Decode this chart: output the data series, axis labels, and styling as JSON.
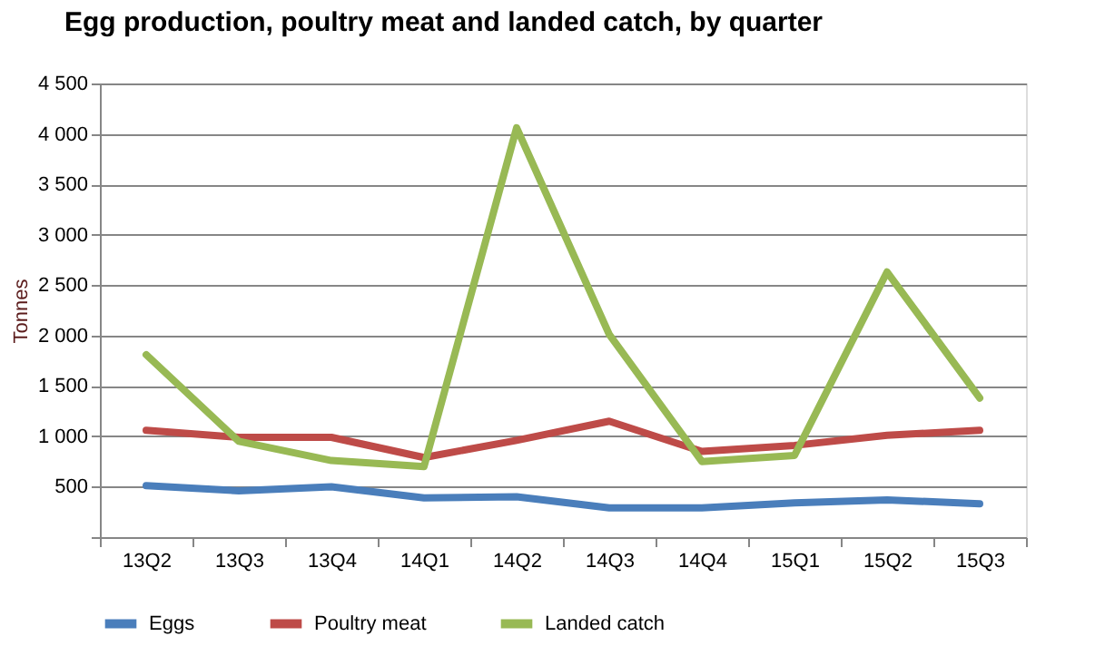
{
  "chart_data": {
    "type": "line",
    "title": "Egg production, poultry meat and landed catch, by quarter",
    "ylabel": "Tonnes",
    "categories": [
      "13Q2",
      "13Q3",
      "13Q4",
      "14Q1",
      "14Q2",
      "14Q3",
      "14Q4",
      "15Q1",
      "15Q2",
      "15Q3"
    ],
    "series": [
      {
        "name": "Eggs",
        "color": "#4a7ebb",
        "values": [
          510,
          460,
          500,
          390,
          400,
          290,
          290,
          340,
          370,
          330
        ]
      },
      {
        "name": "Poultry meat",
        "color": "#be4b48",
        "values": [
          1060,
          990,
          990,
          790,
          960,
          1150,
          850,
          910,
          1010,
          1060
        ]
      },
      {
        "name": "Landed catch",
        "color": "#98b954",
        "values": [
          1810,
          950,
          760,
          700,
          4060,
          2010,
          750,
          810,
          2630,
          1380
        ]
      }
    ],
    "ylim": [
      0,
      4500
    ],
    "yticks": [
      {
        "value": 0,
        "label": null
      },
      {
        "value": 500,
        "label": "500"
      },
      {
        "value": 1000,
        "label": "1 000"
      },
      {
        "value": 1500,
        "label": "1 500"
      },
      {
        "value": 2000,
        "label": "2 000"
      },
      {
        "value": 2500,
        "label": "2 500"
      },
      {
        "value": 3000,
        "label": "3 000"
      },
      {
        "value": 3500,
        "label": "3 500"
      },
      {
        "value": 4000,
        "label": "4 000"
      },
      {
        "value": 4500,
        "label": "4 500"
      }
    ],
    "grid": "y",
    "legend": "bottom",
    "marker": "none",
    "line_style": "solid"
  }
}
